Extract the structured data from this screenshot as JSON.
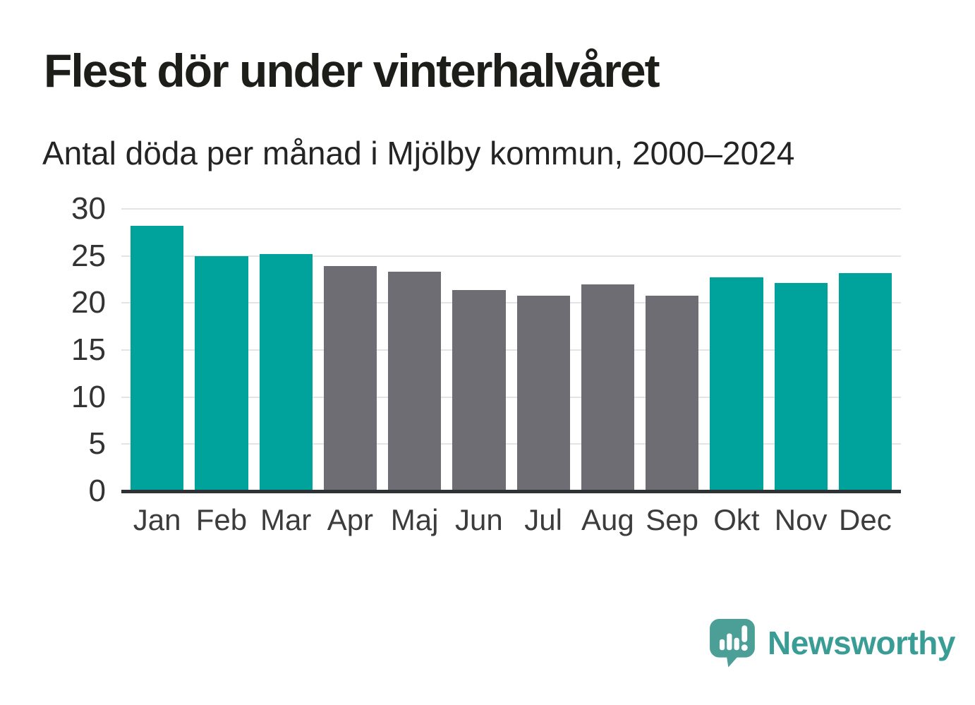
{
  "title": "Flest dör under vinterhalvåret",
  "subtitle": "Antal döda per månad i Mjölby kommun, 2000–2024",
  "colors": {
    "highlight": "#00a39b",
    "muted": "#6e6d74",
    "gridline": "#e4e4e4",
    "axis": "#2e3234",
    "logo_icon": "#4c9f97",
    "logo_text": "#3a9d95"
  },
  "branding": {
    "logo_text": "Newsworthy",
    "logo_icon": "speech-bubble-bar-chart-icon"
  },
  "chart_data": {
    "type": "bar",
    "title": "Flest dör under vinterhalvåret",
    "subtitle": "Antal döda per månad i Mjölby kommun, 2000–2024",
    "categories": [
      "Jan",
      "Feb",
      "Mar",
      "Apr",
      "Maj",
      "Jun",
      "Jul",
      "Aug",
      "Sep",
      "Okt",
      "Nov",
      "Dec"
    ],
    "values": [
      28.2,
      25.0,
      25.2,
      23.9,
      23.3,
      21.4,
      20.8,
      22.0,
      20.8,
      22.7,
      22.1,
      23.2
    ],
    "highlighted": [
      true,
      true,
      true,
      false,
      false,
      false,
      false,
      false,
      false,
      true,
      true,
      true
    ],
    "highlight_meaning": "winter half-year months (Okt–Mar) in teal, summer months (Apr–Sep) in gray",
    "xlabel": "",
    "ylabel": "",
    "ylim": [
      0,
      30
    ],
    "yticks": [
      0,
      5,
      10,
      15,
      20,
      25,
      30
    ],
    "grid": true,
    "legend_position": "none"
  }
}
